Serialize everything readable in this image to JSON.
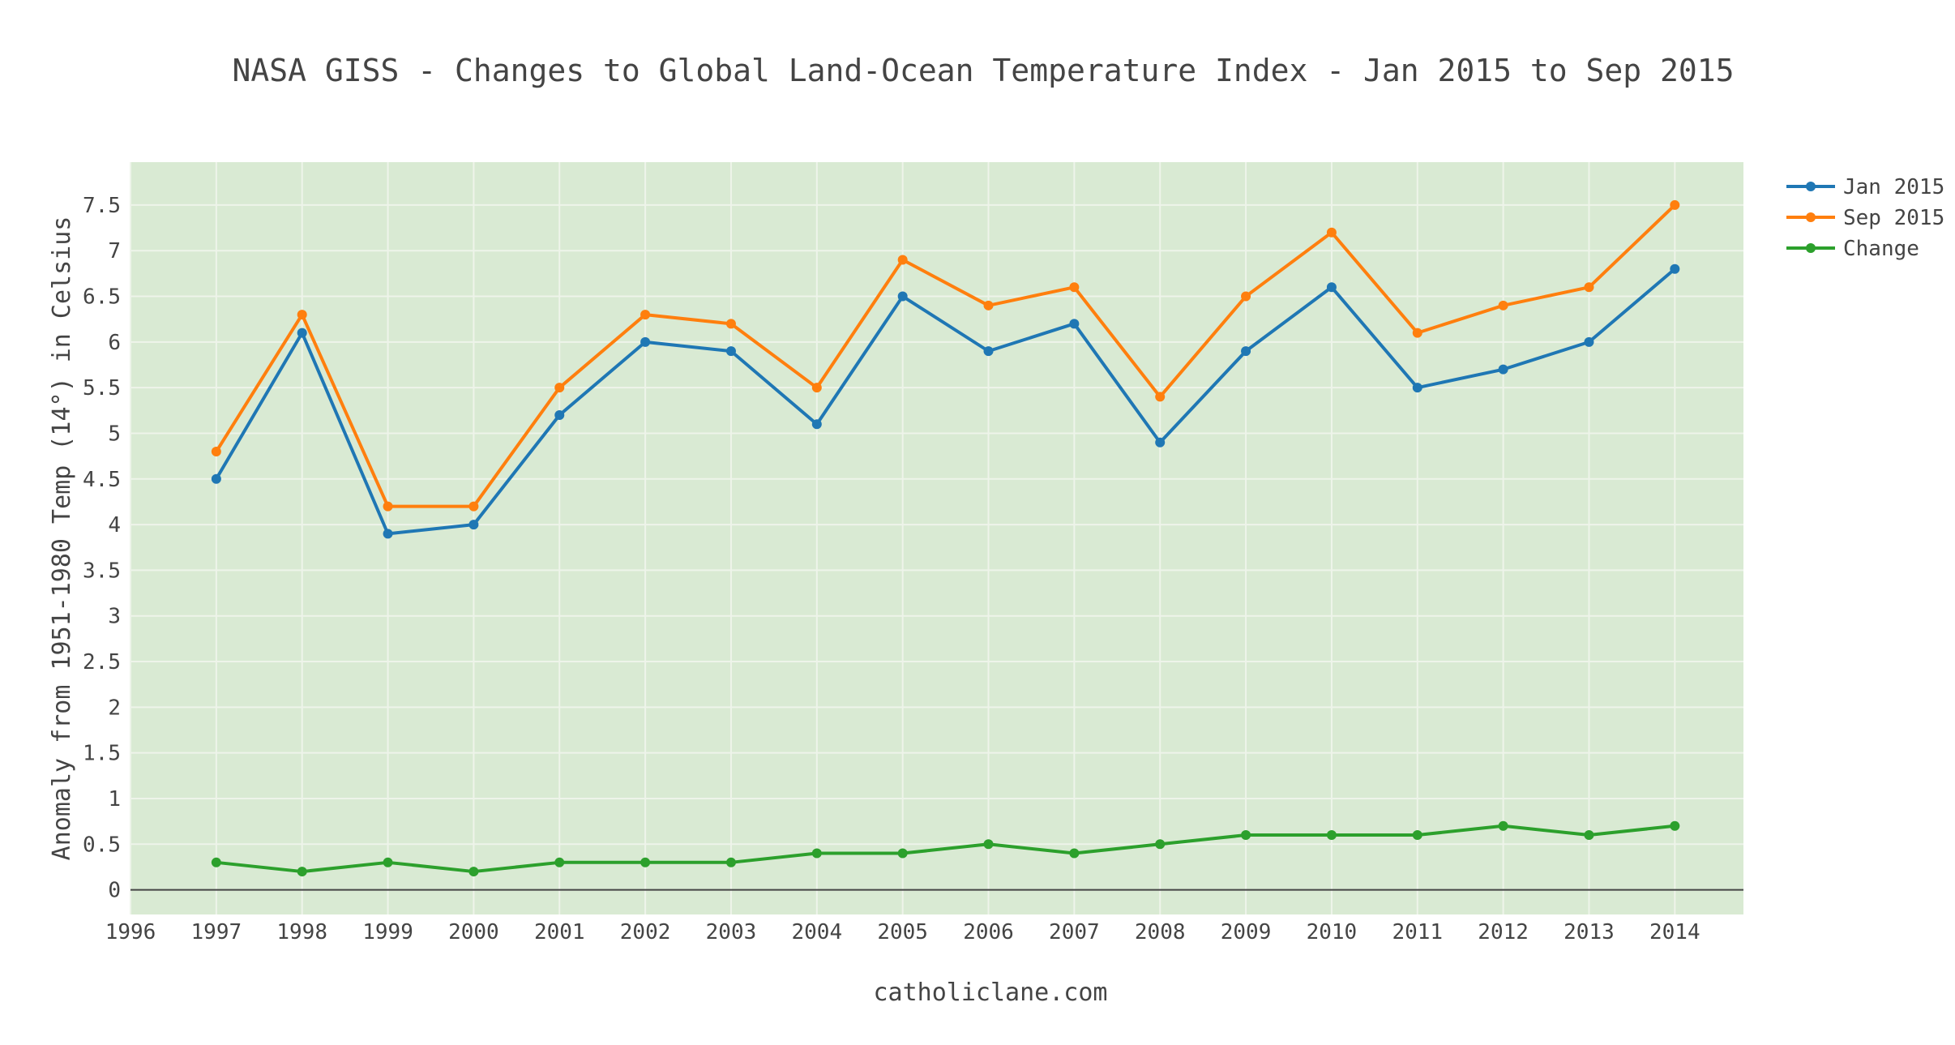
{
  "chart_data": {
    "type": "line",
    "title": "NASA GISS - Changes to Global Land-Ocean Temperature Index - Jan 2015 to Sep 2015",
    "xlabel": "catholiclane.com",
    "ylabel": "Anomaly from 1951-1980 Temp (14°) in Celsius",
    "x": [
      1997,
      1998,
      1999,
      2000,
      2001,
      2002,
      2003,
      2004,
      2005,
      2006,
      2007,
      2008,
      2009,
      2010,
      2011,
      2012,
      2013,
      2014
    ],
    "x_ticks": [
      "1996",
      "1997",
      "1998",
      "1999",
      "2000",
      "2001",
      "2002",
      "2003",
      "2004",
      "2005",
      "2006",
      "2007",
      "2008",
      "2009",
      "2010",
      "2011",
      "2012",
      "2013",
      "2014"
    ],
    "y_ticks": [
      "0",
      "0.5",
      "1",
      "1.5",
      "2",
      "2.5",
      "3",
      "3.5",
      "4",
      "4.5",
      "5",
      "5.5",
      "6",
      "6.5",
      "7",
      "7.5"
    ],
    "xlim": [
      1996,
      2014.8
    ],
    "ylim": [
      -0.27,
      7.97
    ],
    "grid": true,
    "legend_position": "top-right",
    "plot_background": "#d9ead3",
    "series": [
      {
        "name": "Jan 2015",
        "color": "#1f77b4",
        "values": [
          4.5,
          6.1,
          3.9,
          4.0,
          5.2,
          6.0,
          5.9,
          5.1,
          6.5,
          5.9,
          6.2,
          4.9,
          5.9,
          6.6,
          5.5,
          5.7,
          6.0,
          6.8
        ]
      },
      {
        "name": "Sep 2015",
        "color": "#ff7f0e",
        "values": [
          4.8,
          6.3,
          4.2,
          4.2,
          5.5,
          6.3,
          6.2,
          5.5,
          6.9,
          6.4,
          6.6,
          5.4,
          6.5,
          7.2,
          6.1,
          6.4,
          6.6,
          7.5
        ]
      },
      {
        "name": "Change",
        "color": "#2ca02c",
        "values": [
          0.3,
          0.2,
          0.3,
          0.2,
          0.3,
          0.3,
          0.3,
          0.4,
          0.4,
          0.5,
          0.4,
          0.5,
          0.6,
          0.6,
          0.6,
          0.7,
          0.6,
          0.7
        ]
      }
    ]
  }
}
